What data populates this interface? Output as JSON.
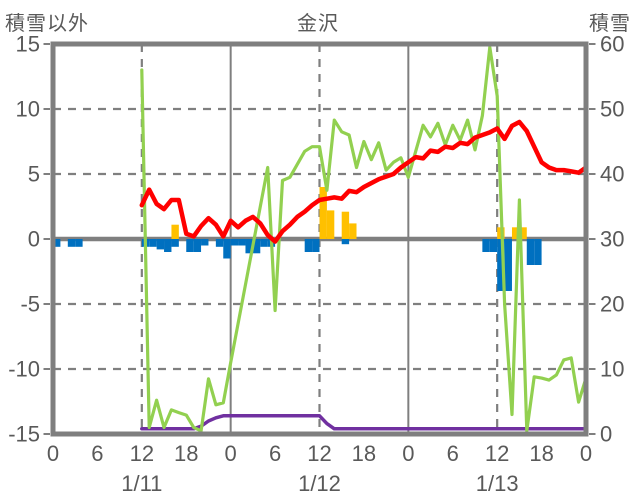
{
  "header": {
    "left_label": "積雪以外",
    "title": "金沢",
    "right_label": "積雪"
  },
  "chart_data": {
    "type": "combo-line-bar",
    "title": "金沢",
    "grid_color": "#7F7F7F",
    "text_color": "#595959",
    "x_axis": {
      "hours_total": 72,
      "tick_step": 6,
      "hour_labels": [
        "0",
        "6",
        "12",
        "18",
        "0",
        "6",
        "12",
        "18",
        "0",
        "6",
        "12",
        "18",
        "0"
      ],
      "day_labels": [
        "1/11",
        "1/12",
        "1/13"
      ],
      "day_label_hours": [
        12,
        36,
        60
      ],
      "solid_gridline_hours": [
        24,
        48
      ],
      "dashed_gridline_hours": [
        12,
        36,
        60
      ]
    },
    "left_axis": {
      "label": "積雪以外",
      "min": -15,
      "max": 15,
      "tick_values": [
        15,
        10,
        5,
        0,
        -5,
        -10,
        -15
      ],
      "dashed_grid_values": [
        10,
        5,
        -5,
        -10
      ],
      "zero_line_value": 0
    },
    "right_axis": {
      "label": "積雪",
      "min": 0,
      "max": 60,
      "tick_values": [
        60,
        50,
        40,
        30,
        20,
        10,
        0
      ]
    },
    "series": [
      {
        "name": "orange-bars",
        "type": "bar",
        "axis": "left",
        "color": "#FFC000",
        "points": [
          {
            "hour": 16,
            "value": 1.1
          },
          {
            "hour": 36,
            "value": 4.0
          },
          {
            "hour": 37,
            "value": 2.2
          },
          {
            "hour": 39,
            "value": 2.1
          },
          {
            "hour": 40,
            "value": 1.2
          },
          {
            "hour": 60,
            "value": 0.9
          },
          {
            "hour": 62,
            "value": 0.9
          },
          {
            "hour": 63,
            "value": 0.9
          }
        ]
      },
      {
        "name": "blue-bars",
        "type": "bar",
        "axis": "left",
        "color": "#0070C0",
        "points": [
          {
            "hour": 0,
            "value": -0.6
          },
          {
            "hour": 2,
            "value": -0.6
          },
          {
            "hour": 3,
            "value": -0.6
          },
          {
            "hour": 12,
            "value": -0.6
          },
          {
            "hour": 13,
            "value": -0.6
          },
          {
            "hour": 14,
            "value": -0.8
          },
          {
            "hour": 15,
            "value": -1.0
          },
          {
            "hour": 16,
            "value": -0.6
          },
          {
            "hour": 18,
            "value": -1.0
          },
          {
            "hour": 19,
            "value": -1.0
          },
          {
            "hour": 20,
            "value": -0.5
          },
          {
            "hour": 22,
            "value": -0.6
          },
          {
            "hour": 23,
            "value": -1.5
          },
          {
            "hour": 24,
            "value": -0.5
          },
          {
            "hour": 25,
            "value": -0.5
          },
          {
            "hour": 26,
            "value": -1.1
          },
          {
            "hour": 27,
            "value": -1.1
          },
          {
            "hour": 28,
            "value": -0.6
          },
          {
            "hour": 29,
            "value": -0.6
          },
          {
            "hour": 34,
            "value": -1.0
          },
          {
            "hour": 35,
            "value": -1.0
          },
          {
            "hour": 39,
            "value": -0.4
          },
          {
            "hour": 58,
            "value": -1.0
          },
          {
            "hour": 59,
            "value": -1.0
          },
          {
            "hour": 60,
            "value": -4.0
          },
          {
            "hour": 61,
            "value": -4.0
          },
          {
            "hour": 64,
            "value": -2.0
          },
          {
            "hour": 65,
            "value": -2.0
          }
        ]
      },
      {
        "name": "purple-line",
        "type": "line",
        "axis": "right",
        "color": "#7030A0",
        "width": 3.5,
        "start_hour": 12,
        "step_hours": 1,
        "values": [
          0.8,
          0.8,
          0.8,
          0.8,
          0.8,
          0.8,
          0.8,
          0.8,
          1.2,
          2.0,
          2.5,
          2.8,
          2.8,
          2.8,
          2.8,
          2.8,
          2.8,
          2.8,
          2.8,
          2.8,
          2.8,
          2.8,
          2.8,
          2.8,
          2.8,
          1.6,
          0.8,
          0.8,
          0.8,
          0.8,
          0.8,
          0.8,
          0.8,
          0.8,
          0.8,
          0.8,
          0.8,
          0.8,
          0.8,
          0.8,
          0.8,
          0.8,
          0.8,
          0.8,
          0.8,
          0.8,
          0.8,
          0.8,
          0.8,
          0.8,
          0.8,
          0.8,
          0.8,
          0.8,
          0.8,
          0.8,
          0.8,
          0.8,
          0.8,
          0.8,
          0.8
        ]
      },
      {
        "name": "snow-depth-line",
        "type": "line",
        "axis": "right",
        "color": "#92D050",
        "width": 3.2,
        "start_hour": 12,
        "step_hours": 1,
        "values": [
          56,
          1,
          5.2,
          1,
          3.7,
          3.3,
          2.9,
          1,
          0.5,
          8.5,
          4.5,
          4.8,
          11,
          17,
          23,
          29,
          35,
          41,
          19,
          39,
          39.5,
          41.5,
          43.5,
          44.2,
          44.2,
          37.5,
          48.3,
          46.5,
          46,
          41,
          45,
          42.2,
          44.8,
          40.6,
          41.8,
          42.5,
          39.5,
          43.5,
          47.5,
          45.7,
          47.8,
          44.5,
          47.5,
          45.2,
          48.3,
          43.7,
          49,
          59.5,
          52,
          20,
          3,
          36,
          0.5,
          8.8,
          8.6,
          8.3,
          9.1,
          11.4,
          11.7,
          4.9,
          8.6
        ]
      },
      {
        "name": "temperature-line",
        "type": "line",
        "axis": "left",
        "color": "#FF0000",
        "width": 4.5,
        "start_hour": 12,
        "step_hours": 1,
        "values": [
          2.6,
          3.8,
          2.7,
          2.3,
          3.0,
          3.0,
          0.4,
          0.2,
          1.0,
          1.6,
          1.1,
          0.2,
          1.4,
          0.9,
          1.4,
          1.7,
          1.2,
          0.3,
          -0.2,
          0.6,
          1.1,
          1.7,
          2.1,
          2.6,
          3.0,
          3.1,
          3.2,
          3.1,
          3.7,
          3.6,
          4.0,
          4.3,
          4.6,
          4.8,
          5.0,
          5.5,
          5.9,
          6.3,
          6.2,
          6.8,
          6.7,
          7.1,
          7.0,
          7.4,
          7.3,
          7.8,
          8.0,
          8.2,
          8.5,
          7.7,
          8.7,
          9.0,
          8.3,
          7.1,
          5.9,
          5.5,
          5.3,
          5.3,
          5.2,
          5.1,
          5.5
        ]
      }
    ]
  }
}
